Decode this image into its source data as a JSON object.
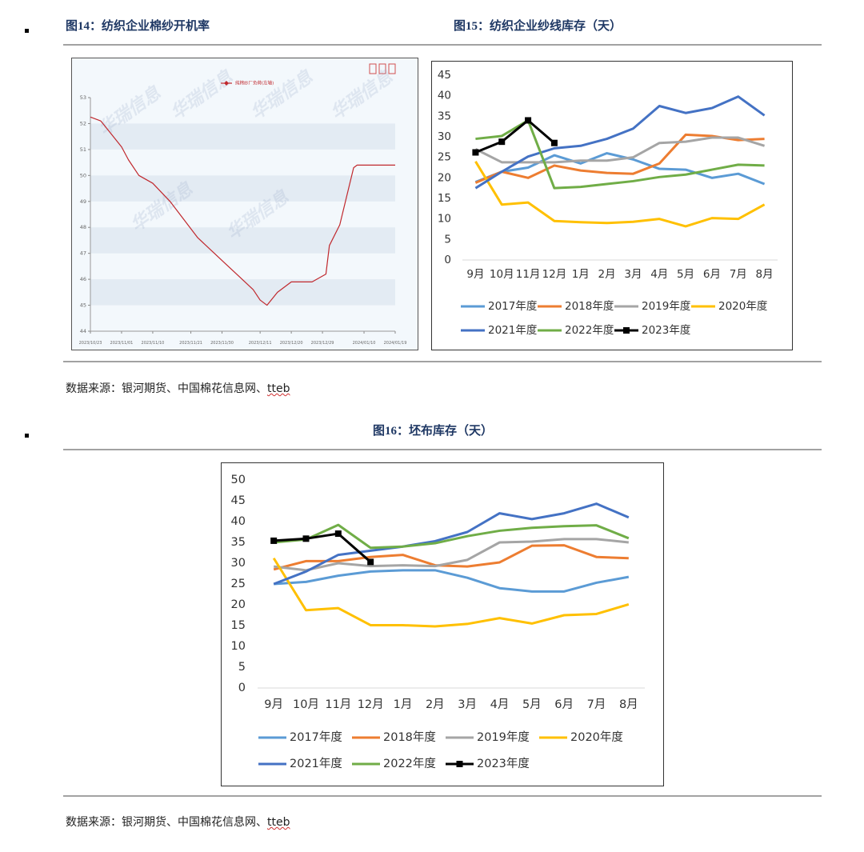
{
  "captions": [
    "图14：纺织企业棉纱开机率",
    "图15：纺织企业纱线库存（天）",
    "图16：坯布库存（天）"
  ],
  "sources": [
    {
      "text": "数据来源：银河期货、中国棉花信息网、",
      "link": "tteb"
    },
    {
      "text": "数据来源：银河期货、中国棉花信息网、",
      "link": "tteb"
    }
  ],
  "chart_data": [
    {
      "type": "line",
      "watermark": "华瑞信息",
      "x": [
        "2023/10/23",
        "2023/10/26",
        "2023/10/29",
        "2023/11/01",
        "2023/11/03",
        "2023/11/06",
        "2023/11/10",
        "2023/11/15",
        "2023/11/19",
        "2023/11/23",
        "2023/11/27",
        "2023/12/01",
        "2023/12/05",
        "2023/12/09",
        "2023/12/11",
        "2023/12/13",
        "2023/12/16",
        "2023/12/20",
        "2023/12/26",
        "2023/12/30",
        "2023/12/31",
        "2024/01/03",
        "2024/01/05",
        "2024/01/07",
        "2024/01/08",
        "2024/01/19"
      ],
      "series": [
        {
          "name": "纯棉纱厂负荷(左轴)",
          "color": "#c0282d",
          "marker": "diamond",
          "values": [
            52.25,
            52.1,
            51.6,
            51.1,
            50.6,
            50.0,
            49.7,
            49.0,
            48.3,
            47.6,
            47.1,
            46.6,
            46.1,
            45.6,
            45.2,
            45.0,
            45.5,
            45.9,
            45.9,
            46.2,
            47.3,
            48.1,
            49.2,
            50.3,
            50.4,
            50.4
          ]
        }
      ],
      "xlim": [
        "2023/10/23",
        "2024/01/19"
      ],
      "xticks": [
        "2023/10/23",
        "2023/11/01",
        "2023/11/10",
        "2023/11/21",
        "2023/11/30",
        "2023/12/11",
        "2023/12/20",
        "2023/12/29",
        "2024/01/10",
        "2024/01/19"
      ],
      "ylim": [
        44,
        53
      ],
      "yticks": [
        44,
        45,
        46,
        47,
        48,
        49,
        50,
        51,
        52,
        53
      ],
      "grid": true
    },
    {
      "type": "line",
      "categories": [
        "9月",
        "10月",
        "11月",
        "12月",
        "1月",
        "2月",
        "3月",
        "4月",
        "5月",
        "6月",
        "7月",
        "8月"
      ],
      "series": [
        {
          "name": "2017年度",
          "color": "#5b9bd5",
          "values": [
            19,
            21.5,
            22.5,
            25.5,
            23.5,
            26,
            24.5,
            22.2,
            22,
            20,
            21,
            18.5
          ]
        },
        {
          "name": "2018年度",
          "color": "#ed7d31",
          "values": [
            18.8,
            21.5,
            20,
            23,
            21.8,
            21.2,
            21,
            23.5,
            30.5,
            30.2,
            29.2,
            29.5
          ]
        },
        {
          "name": "2019年度",
          "color": "#a5a5a5",
          "values": [
            27,
            23.8,
            23.8,
            23.8,
            24.2,
            24.2,
            25,
            28.5,
            28.8,
            29.8,
            29.8,
            27.8
          ]
        },
        {
          "name": "2020年度",
          "color": "#ffc000",
          "values": [
            24,
            13.5,
            14,
            9.5,
            9.2,
            9,
            9.3,
            10,
            8.2,
            10.2,
            10,
            13.5
          ]
        },
        {
          "name": "2021年度",
          "color": "#4472c4",
          "values": [
            17.5,
            21.5,
            25.2,
            27.2,
            27.8,
            29.5,
            32,
            37.5,
            35.8,
            37,
            39.8,
            35.2
          ]
        },
        {
          "name": "2022年度",
          "color": "#70ad47",
          "values": [
            29.5,
            30.2,
            34,
            17.5,
            17.8,
            18.5,
            19.2,
            20.2,
            20.8,
            22,
            23.2,
            23
          ]
        },
        {
          "name": "2023年度",
          "color": "#000000",
          "marker": "square",
          "values": [
            26.2,
            28.8,
            34,
            28.5,
            null,
            null,
            null,
            null,
            null,
            null,
            null,
            null
          ]
        }
      ],
      "ylim": [
        0,
        45
      ],
      "yticks": [
        0,
        5,
        10,
        15,
        20,
        25,
        30,
        35,
        40,
        45
      ],
      "grid": false
    },
    {
      "type": "line",
      "categories": [
        "9月",
        "10月",
        "11月",
        "12月",
        "1月",
        "2月",
        "3月",
        "4月",
        "5月",
        "6月",
        "7月",
        "8月"
      ],
      "series": [
        {
          "name": "2017年度",
          "color": "#5b9bd5",
          "values": [
            25,
            25.5,
            27,
            28,
            28.3,
            28.3,
            26.5,
            24,
            23.2,
            23.2,
            25.3,
            26.7
          ]
        },
        {
          "name": "2018年度",
          "color": "#ed7d31",
          "values": [
            28.5,
            30.5,
            30.5,
            31.5,
            32,
            29.5,
            29.2,
            30.2,
            34.2,
            34.3,
            31.5,
            31.2
          ]
        },
        {
          "name": "2019年度",
          "color": "#a5a5a5",
          "values": [
            29.2,
            28.3,
            30,
            29.3,
            29.5,
            29.3,
            30.8,
            35,
            35.2,
            35.8,
            35.8,
            35
          ]
        },
        {
          "name": "2020年度",
          "color": "#ffc000",
          "values": [
            31.2,
            18.7,
            19.2,
            15.1,
            15.1,
            14.8,
            15.4,
            16.8,
            15.5,
            17.5,
            17.8,
            20.1
          ]
        },
        {
          "name": "2021年度",
          "color": "#4472c4",
          "values": [
            25,
            28,
            32,
            33,
            34,
            35.3,
            37.5,
            42,
            40.6,
            42,
            44.3,
            41
          ]
        },
        {
          "name": "2022年度",
          "color": "#70ad47",
          "values": [
            35,
            35.7,
            39.2,
            33.7,
            34,
            34.8,
            36.5,
            37.8,
            38.5,
            38.9,
            39.1,
            36
          ]
        },
        {
          "name": "2023年度",
          "color": "#000000",
          "marker": "square",
          "values": [
            35.4,
            35.9,
            37.1,
            30.3,
            null,
            null,
            null,
            null,
            null,
            null,
            null,
            null
          ]
        }
      ],
      "ylim": [
        0,
        50
      ],
      "yticks": [
        0,
        5,
        10,
        15,
        20,
        25,
        30,
        35,
        40,
        45,
        50
      ],
      "grid": false
    }
  ]
}
